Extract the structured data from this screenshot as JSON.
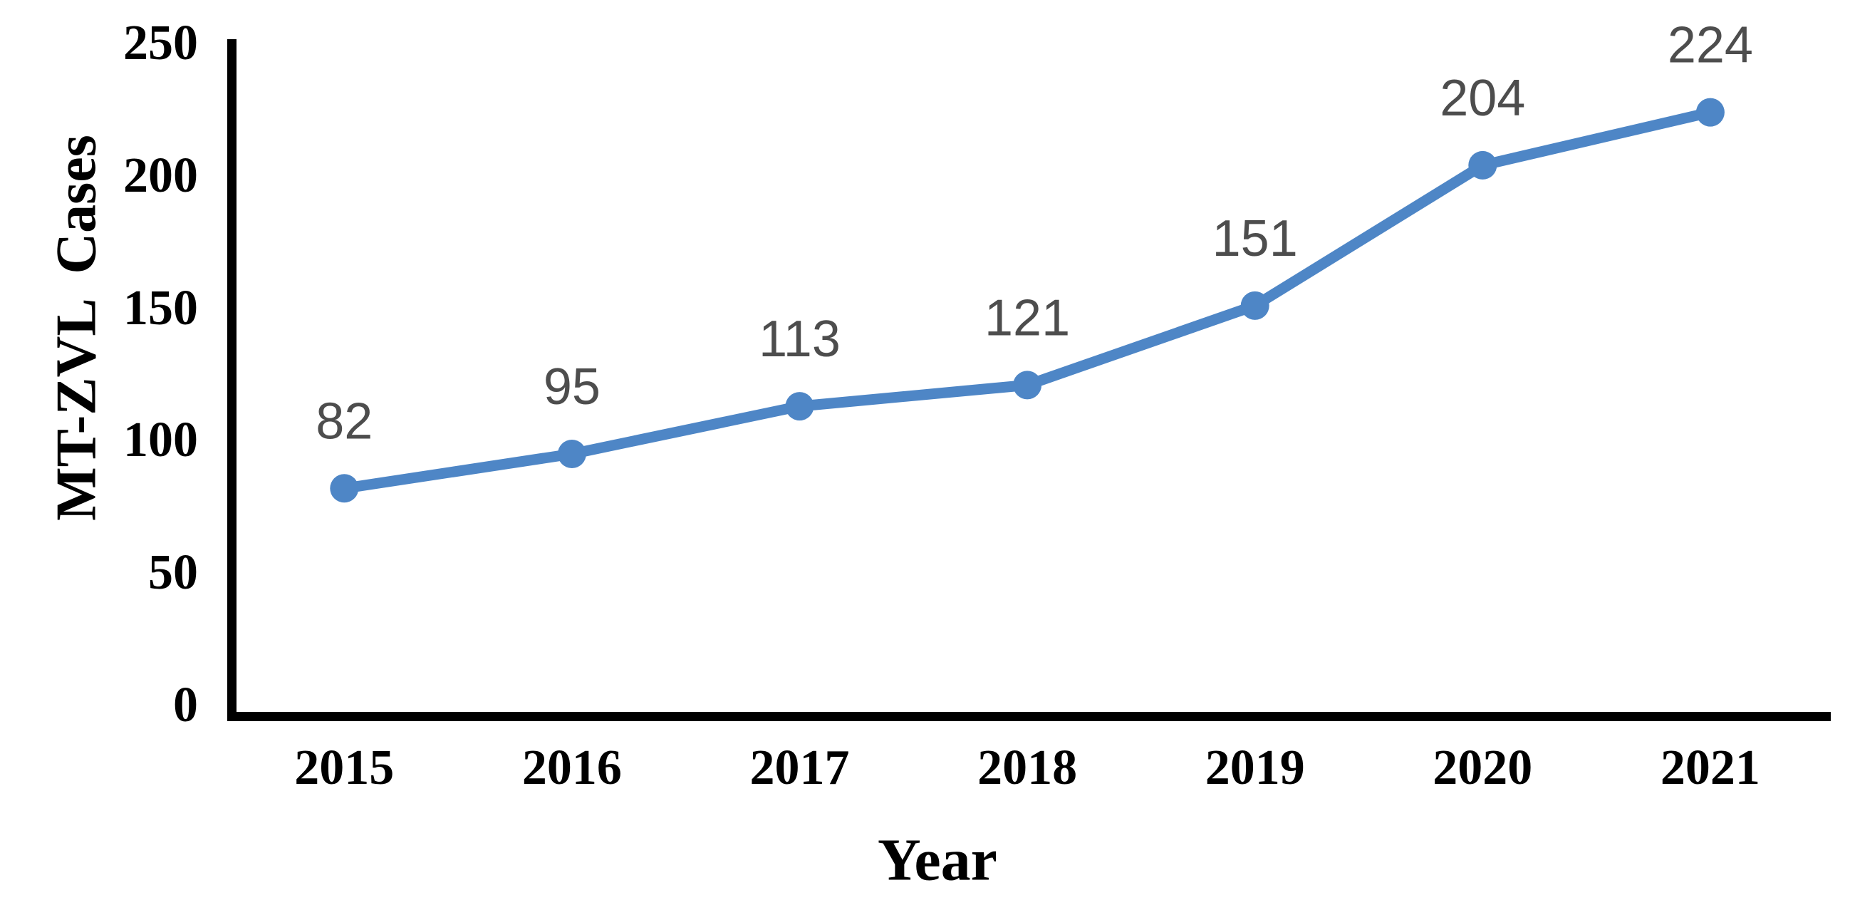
{
  "figure": {
    "background": "#ffffff"
  },
  "chart_data": {
    "type": "line",
    "title": "",
    "xlabel": "Year",
    "ylabel": "MT-ZVL Cases",
    "categories": [
      "2015",
      "2016",
      "2017",
      "2018",
      "2019",
      "2020",
      "2021"
    ],
    "series": [
      {
        "name": "MT-ZVL Cases",
        "values": [
          82,
          95,
          113,
          121,
          151,
          204,
          224
        ]
      }
    ],
    "ylim": [
      0,
      250
    ],
    "yticks": [
      0,
      50,
      100,
      150,
      200,
      250
    ],
    "grid": false,
    "legend": "none",
    "data_labels_shown": true,
    "line_color": "#4E86C6",
    "marker_color": "#4E86C6",
    "marker_shape": "circle",
    "data_label_color": "#4D4D4D",
    "axis_color": "#000000",
    "tick_label_color": "#000000"
  }
}
